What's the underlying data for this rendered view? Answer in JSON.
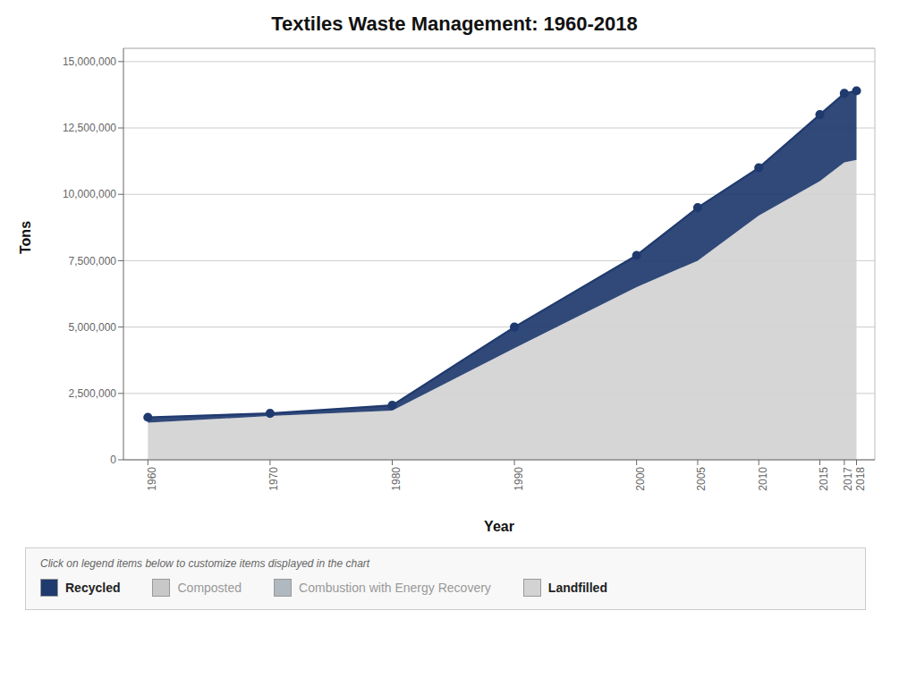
{
  "chart_data": {
    "type": "area",
    "title": "Textiles Waste Management: 1960-2018",
    "subtitle": "Click on legend items below to customize items displayed in the chart",
    "x_label": "Year",
    "y_label": "Tons",
    "x": [
      1960,
      1970,
      1980,
      1990,
      2000,
      2005,
      2010,
      2015,
      2017,
      2018
    ],
    "series": [
      {
        "name": "Recycled",
        "color": "#1f3a6e",
        "marker": "circle",
        "values": [
          1600000,
          1750000,
          2050000,
          5000000,
          7700000,
          9500000,
          11000000,
          13000000,
          13800000,
          13900000
        ]
      },
      {
        "name": "Composted",
        "color": "#c8c8c8",
        "values": [
          null,
          null,
          null,
          null,
          null,
          null,
          null,
          null,
          null,
          null
        ]
      },
      {
        "name": "Combustion with Energy Recovery",
        "color": "#b0b8c0",
        "values": [
          null,
          null,
          null,
          null,
          null,
          null,
          null,
          null,
          null,
          null
        ]
      },
      {
        "name": "Landfilled",
        "color": "#d3d3d3",
        "values": [
          1400000,
          1650000,
          1850000,
          4200000,
          6500000,
          7500000,
          9200000,
          10500000,
          11200000,
          11300000
        ]
      }
    ],
    "xlim": [
      1958,
      2019.5
    ],
    "xticks": [
      1960,
      1970,
      1980,
      1990,
      2000,
      2005,
      2010,
      2015,
      2017,
      2018
    ],
    "ylim": [
      0,
      15500000
    ],
    "yticks": [
      0,
      {
        "value": 2500000,
        "label": "2,500,000"
      },
      {
        "value": 5000000,
        "label": "5,000,000"
      },
      {
        "value": 7500000,
        "label": "7,500,000"
      },
      {
        "value": 10000000,
        "label": "10,000,000"
      },
      {
        "value": 12500000,
        "label": "12,500,000"
      },
      {
        "value": 15000000,
        "label": "15,000,000"
      }
    ],
    "grid": true
  }
}
